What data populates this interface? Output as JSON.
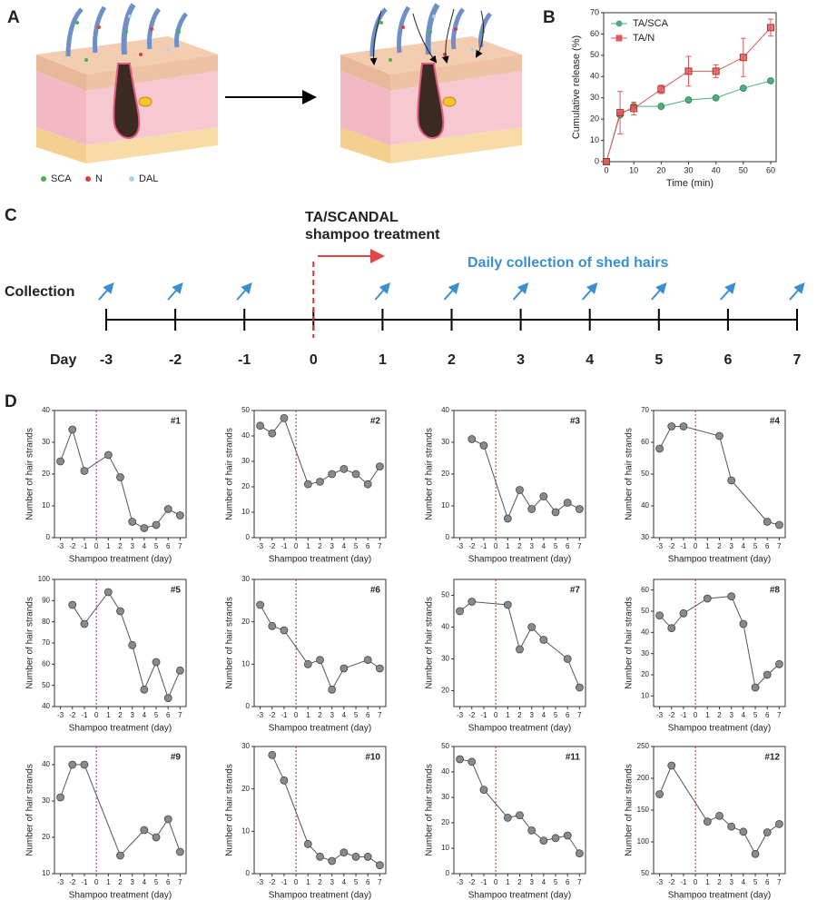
{
  "panel_labels": [
    "A",
    "B",
    "C",
    "D"
  ],
  "illustration": {
    "legend": [
      "SCA",
      "N",
      "DAL"
    ]
  },
  "timeline": {
    "row_label": "Collection",
    "axis_label": "Day",
    "treatment_lines": [
      "TA/SCANDAL",
      "shampoo treatment"
    ],
    "note": "Daily collection of shed hairs",
    "days": [
      "-3",
      "-2",
      "-1",
      "0",
      "1",
      "2",
      "3",
      "4",
      "5",
      "6",
      "7"
    ]
  },
  "chart_data": [
    {
      "type": "line",
      "xlabel": "Time (min)",
      "ylabel": "Cumulative release (%)",
      "x": [
        0,
        5,
        10,
        20,
        30,
        40,
        50,
        60
      ],
      "series": [
        {
          "name": "TA/SCA",
          "color": "#4caf7d",
          "marker": "circle",
          "values": [
            0,
            22,
            26,
            26,
            29,
            30,
            34.5,
            38
          ],
          "errors": [
            0,
            1,
            1,
            0.5,
            0.5,
            0.5,
            0.5,
            0.5
          ]
        },
        {
          "name": "TA/N",
          "color": "#e05a5a",
          "marker": "square",
          "values": [
            0,
            23,
            25,
            34,
            42.5,
            42.5,
            49,
            63
          ],
          "errors": [
            0,
            10,
            3,
            2,
            7,
            3,
            9,
            4
          ]
        }
      ],
      "xlim": [
        -1,
        62
      ],
      "xticks": [
        0,
        10,
        20,
        30,
        40,
        50,
        60
      ],
      "ylim": [
        0,
        70
      ],
      "yticks": [
        0,
        10,
        20,
        30,
        40,
        50,
        60,
        70
      ],
      "legend": "upper left"
    },
    {
      "type": "line",
      "annotation": "#1",
      "xlabel": "Shampoo treatment (day)",
      "ylabel": "Number of hair strands",
      "color": "#8a8a8a",
      "vline": 0,
      "x": [
        -3,
        -2,
        -1,
        1,
        2,
        3,
        4,
        5,
        6,
        7
      ],
      "values": [
        24,
        34,
        21,
        26,
        19,
        5,
        3,
        4,
        9,
        7
      ],
      "xlim": [
        -3.5,
        7.5
      ],
      "xticks": [
        -3,
        -2,
        -1,
        0,
        1,
        2,
        3,
        4,
        5,
        6,
        7
      ],
      "ylim": [
        0,
        40
      ],
      "yticks": [
        0,
        10,
        20,
        30,
        40
      ]
    },
    {
      "type": "line",
      "annotation": "#2",
      "xlabel": "Shampoo treatment (day)",
      "ylabel": "Number of hair strands",
      "color": "#8a8a8a",
      "vline": 0,
      "x": [
        -3,
        -2,
        -1,
        1,
        2,
        3,
        4,
        5,
        6,
        7
      ],
      "values": [
        44,
        41,
        47,
        21,
        22,
        25,
        27,
        25,
        21,
        28
      ],
      "xlim": [
        -3.5,
        7.5
      ],
      "xticks": [
        -3,
        -2,
        -1,
        0,
        1,
        2,
        3,
        4,
        5,
        6,
        7
      ],
      "ylim": [
        0,
        50
      ],
      "yticks": [
        0,
        10,
        20,
        30,
        40,
        50
      ]
    },
    {
      "type": "line",
      "annotation": "#3",
      "xlabel": "Shampoo treatment (day)",
      "ylabel": "Number of hair strands",
      "color": "#8a8a8a",
      "vline": 0,
      "x": [
        -2,
        -1,
        1,
        2,
        3,
        4,
        5,
        6,
        7
      ],
      "values": [
        31,
        29,
        6,
        15,
        9,
        13,
        8,
        11,
        9
      ],
      "xlim": [
        -3.5,
        7.5
      ],
      "xticks": [
        -3,
        -2,
        -1,
        0,
        1,
        2,
        3,
        4,
        5,
        6,
        7
      ],
      "ylim": [
        0,
        40
      ],
      "yticks": [
        0,
        10,
        20,
        30,
        40
      ]
    },
    {
      "type": "line",
      "annotation": "#4",
      "xlabel": "Shampoo treatment (day)",
      "ylabel": "Number of hair strands",
      "color": "#8a8a8a",
      "vline": 0,
      "x": [
        -3,
        -2,
        -1,
        2,
        3,
        6,
        7
      ],
      "values": [
        58,
        65,
        65,
        62,
        48,
        35,
        34
      ],
      "xlim": [
        -3.5,
        7.5
      ],
      "xticks": [
        -3,
        -2,
        -1,
        0,
        1,
        2,
        3,
        4,
        5,
        6,
        7
      ],
      "ylim": [
        30,
        70
      ],
      "yticks": [
        30,
        40,
        50,
        60,
        70
      ]
    },
    {
      "type": "line",
      "annotation": "#5",
      "xlabel": "Shampoo treatment (day)",
      "ylabel": "Number of hair strands",
      "color": "#8a8a8a",
      "vline": 0,
      "x": [
        -2,
        -1,
        1,
        2,
        3,
        4,
        5,
        6,
        7
      ],
      "values": [
        88,
        79,
        94,
        85,
        69,
        48,
        61,
        44,
        57
      ],
      "xlim": [
        -3.5,
        7.5
      ],
      "xticks": [
        -3,
        -2,
        -1,
        0,
        1,
        2,
        3,
        4,
        5,
        6,
        7
      ],
      "ylim": [
        40,
        100
      ],
      "yticks": [
        40,
        50,
        60,
        70,
        80,
        90,
        100
      ]
    },
    {
      "type": "line",
      "annotation": "#6",
      "xlabel": "Shampoo treatment (day)",
      "ylabel": "Number of hair strands",
      "color": "#8a8a8a",
      "vline": 0,
      "x": [
        -3,
        -2,
        -1,
        1,
        2,
        3,
        4,
        6,
        7
      ],
      "values": [
        24,
        19,
        18,
        10,
        11,
        4,
        9,
        11,
        9
      ],
      "xlim": [
        -3.5,
        7.5
      ],
      "xticks": [
        -3,
        -2,
        -1,
        0,
        1,
        2,
        3,
        4,
        5,
        6,
        7
      ],
      "ylim": [
        0,
        30
      ],
      "yticks": [
        0,
        10,
        20,
        30
      ]
    },
    {
      "type": "line",
      "annotation": "#7",
      "xlabel": "Shampoo treatment (day)",
      "ylabel": "Number of hair strands",
      "color": "#8a8a8a",
      "vline": 0,
      "x": [
        -3,
        -2,
        1,
        2,
        3,
        4,
        6,
        7
      ],
      "values": [
        45,
        48,
        47,
        33,
        40,
        36,
        30,
        21
      ],
      "xlim": [
        -3.5,
        7.5
      ],
      "xticks": [
        -3,
        -2,
        -1,
        0,
        1,
        2,
        3,
        4,
        5,
        6,
        7
      ],
      "ylim": [
        15,
        55
      ],
      "yticks": [
        20,
        30,
        40,
        50
      ]
    },
    {
      "type": "line",
      "annotation": "#8",
      "xlabel": "Shampoo treatment (day)",
      "ylabel": "Number of hair strands",
      "color": "#8a8a8a",
      "vline": 0,
      "x": [
        -3,
        -2,
        -1,
        1,
        3,
        4,
        5,
        6,
        7
      ],
      "values": [
        48,
        42,
        49,
        56,
        57,
        44,
        14,
        20,
        25
      ],
      "xlim": [
        -3.5,
        7.5
      ],
      "xticks": [
        -3,
        -2,
        -1,
        0,
        1,
        2,
        3,
        4,
        5,
        6,
        7
      ],
      "ylim": [
        5,
        65
      ],
      "yticks": [
        10,
        20,
        30,
        40,
        50,
        60
      ]
    },
    {
      "type": "line",
      "annotation": "#9",
      "xlabel": "Shampoo treatment (day)",
      "ylabel": "Number of hair strands",
      "color": "#8a8a8a",
      "vline": 0,
      "x": [
        -3,
        -2,
        -1,
        2,
        4,
        5,
        6,
        7
      ],
      "values": [
        31,
        40,
        40,
        15,
        22,
        20,
        25,
        16
      ],
      "xlim": [
        -3.5,
        7.5
      ],
      "xticks": [
        -3,
        -2,
        -1,
        0,
        1,
        2,
        3,
        4,
        5,
        6,
        7
      ],
      "ylim": [
        10,
        45
      ],
      "yticks": [
        10,
        20,
        30,
        40
      ]
    },
    {
      "type": "line",
      "annotation": "#10",
      "xlabel": "Shampoo treatment (day)",
      "ylabel": "Number of hair strands",
      "color": "#8a8a8a",
      "vline": 0,
      "x": [
        -2,
        -1,
        1,
        2,
        3,
        4,
        5,
        6,
        7
      ],
      "values": [
        28,
        22,
        7,
        4,
        3,
        5,
        4,
        4,
        2
      ],
      "xlim": [
        -3.5,
        7.5
      ],
      "xticks": [
        -3,
        -2,
        -1,
        0,
        1,
        2,
        3,
        4,
        5,
        6,
        7
      ],
      "ylim": [
        0,
        30
      ],
      "yticks": [
        0,
        10,
        20,
        30
      ]
    },
    {
      "type": "line",
      "annotation": "#11",
      "xlabel": "Shampoo treatment (day)",
      "ylabel": "Number of hair strands",
      "color": "#8a8a8a",
      "vline": 0,
      "x": [
        -3,
        -2,
        -1,
        1,
        2,
        3,
        4,
        5,
        6,
        7
      ],
      "values": [
        45,
        44,
        33,
        22,
        23,
        17,
        13,
        14,
        15,
        8
      ],
      "xlim": [
        -3.5,
        7.5
      ],
      "xticks": [
        -3,
        -2,
        -1,
        0,
        1,
        2,
        3,
        4,
        5,
        6,
        7
      ],
      "ylim": [
        0,
        50
      ],
      "yticks": [
        0,
        10,
        20,
        30,
        40,
        50
      ]
    },
    {
      "type": "line",
      "annotation": "#12",
      "xlabel": "Shampoo treatment (day)",
      "ylabel": "Number of hair strands",
      "color": "#8a8a8a",
      "vline": 0,
      "x": [
        -3,
        -2,
        1,
        2,
        3,
        4,
        5,
        6,
        7
      ],
      "values": [
        175,
        220,
        132,
        141,
        124,
        116,
        81,
        115,
        128
      ],
      "xlim": [
        -3.5,
        7.5
      ],
      "xticks": [
        -3,
        -2,
        -1,
        0,
        1,
        2,
        3,
        4,
        5,
        6,
        7
      ],
      "ylim": [
        50,
        250
      ],
      "yticks": [
        50,
        100,
        150,
        200,
        250
      ]
    }
  ]
}
